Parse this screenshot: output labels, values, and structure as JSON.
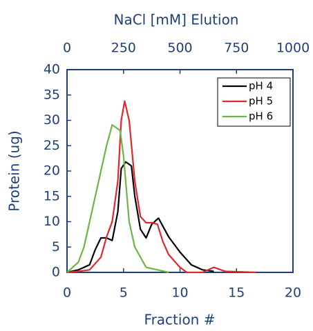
{
  "chart_data": {
    "type": "line",
    "title": "NaCl [mM] Elution",
    "x_label": "Fraction #",
    "y_label": "Protein (ug)",
    "xlim": [
      0,
      20
    ],
    "xticks": [
      0,
      5,
      10,
      15,
      20
    ],
    "ylim": [
      0,
      40
    ],
    "yticks": [
      0,
      5,
      10,
      15,
      20,
      25,
      30,
      35,
      40
    ],
    "x2lim": [
      0,
      1000
    ],
    "x2ticks": [
      0,
      250,
      500,
      750,
      1000
    ],
    "series": [
      {
        "name": "pH 4",
        "color": "#000000",
        "x": [
          0,
          1,
          2,
          2.5,
          3,
          3.5,
          4,
          4.5,
          4.8,
          5.2,
          5.7,
          6,
          6.5,
          7,
          7.5,
          8.1,
          9,
          10,
          11,
          12,
          13
        ],
        "values": [
          0,
          0.5,
          1.5,
          4.5,
          6.8,
          6.8,
          6.3,
          12,
          20.5,
          21.8,
          21,
          15,
          8.5,
          6.8,
          9.5,
          10.7,
          7,
          4,
          1.5,
          0.5,
          0.2
        ]
      },
      {
        "name": "pH 5",
        "color": "#e0262b",
        "x": [
          0,
          1,
          2,
          3,
          3.5,
          4,
          4.5,
          4.8,
          5.1,
          5.5,
          6,
          6.5,
          7,
          7.5,
          8,
          8.5,
          9,
          10,
          10.6,
          12,
          13,
          14,
          16.7
        ],
        "values": [
          0,
          0.2,
          0.5,
          3,
          7,
          10,
          18,
          30,
          33.8,
          30,
          18,
          11,
          9.8,
          9.8,
          9.5,
          6,
          3.5,
          1,
          0,
          0,
          1,
          0.2,
          0
        ]
      },
      {
        "name": "pH 6",
        "color": "#6ab544",
        "x": [
          0,
          1,
          1.5,
          2,
          2.5,
          3,
          3.5,
          4,
          4.7,
          5,
          5.5,
          6,
          7,
          8,
          9
        ],
        "values": [
          0,
          2,
          5,
          10,
          15,
          20,
          25,
          29.1,
          28,
          23,
          10,
          5,
          1,
          0.5,
          0
        ]
      }
    ]
  }
}
